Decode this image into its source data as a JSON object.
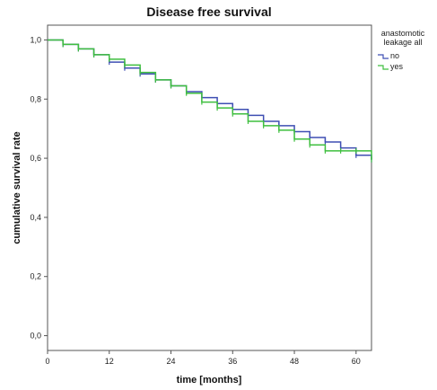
{
  "chart_data": {
    "type": "line",
    "title": "Disease free survival",
    "xlabel": "time [months]",
    "ylabel": "cumulative survival rate",
    "xlim": [
      0,
      63
    ],
    "ylim": [
      -0.05,
      1.05
    ],
    "x_ticks": [
      0,
      12,
      24,
      36,
      48,
      60
    ],
    "y_ticks": [
      0.0,
      0.2,
      0.4,
      0.6,
      0.8,
      1.0
    ],
    "y_tick_labels": [
      "0,0",
      "0,2",
      "0,4",
      "0,6",
      "0,8",
      "1,0"
    ],
    "grid": false,
    "legend": {
      "title": "anastomotic leakage all",
      "title_lines": [
        "anastomotic",
        "leakage all"
      ],
      "placement": "top-right"
    },
    "series": [
      {
        "name": "no",
        "color": "#3f4fb3",
        "x": [
          0,
          3,
          6,
          9,
          12,
          15,
          18,
          21,
          24,
          27,
          30,
          33,
          36,
          39,
          42,
          45,
          48,
          51,
          54,
          57,
          60,
          63
        ],
        "y": [
          1.0,
          0.985,
          0.97,
          0.95,
          0.925,
          0.905,
          0.885,
          0.865,
          0.845,
          0.825,
          0.805,
          0.785,
          0.765,
          0.745,
          0.725,
          0.71,
          0.69,
          0.67,
          0.655,
          0.635,
          0.61,
          0.595
        ]
      },
      {
        "name": "yes",
        "color": "#3fbf3f",
        "x": [
          0,
          3,
          6,
          9,
          12,
          15,
          18,
          21,
          24,
          27,
          30,
          33,
          36,
          39,
          42,
          45,
          48,
          51,
          54,
          57,
          60,
          63
        ],
        "y": [
          1.0,
          0.985,
          0.97,
          0.95,
          0.935,
          0.915,
          0.89,
          0.865,
          0.845,
          0.82,
          0.79,
          0.77,
          0.75,
          0.725,
          0.71,
          0.695,
          0.665,
          0.645,
          0.625,
          0.625,
          0.625,
          0.595
        ]
      }
    ]
  }
}
